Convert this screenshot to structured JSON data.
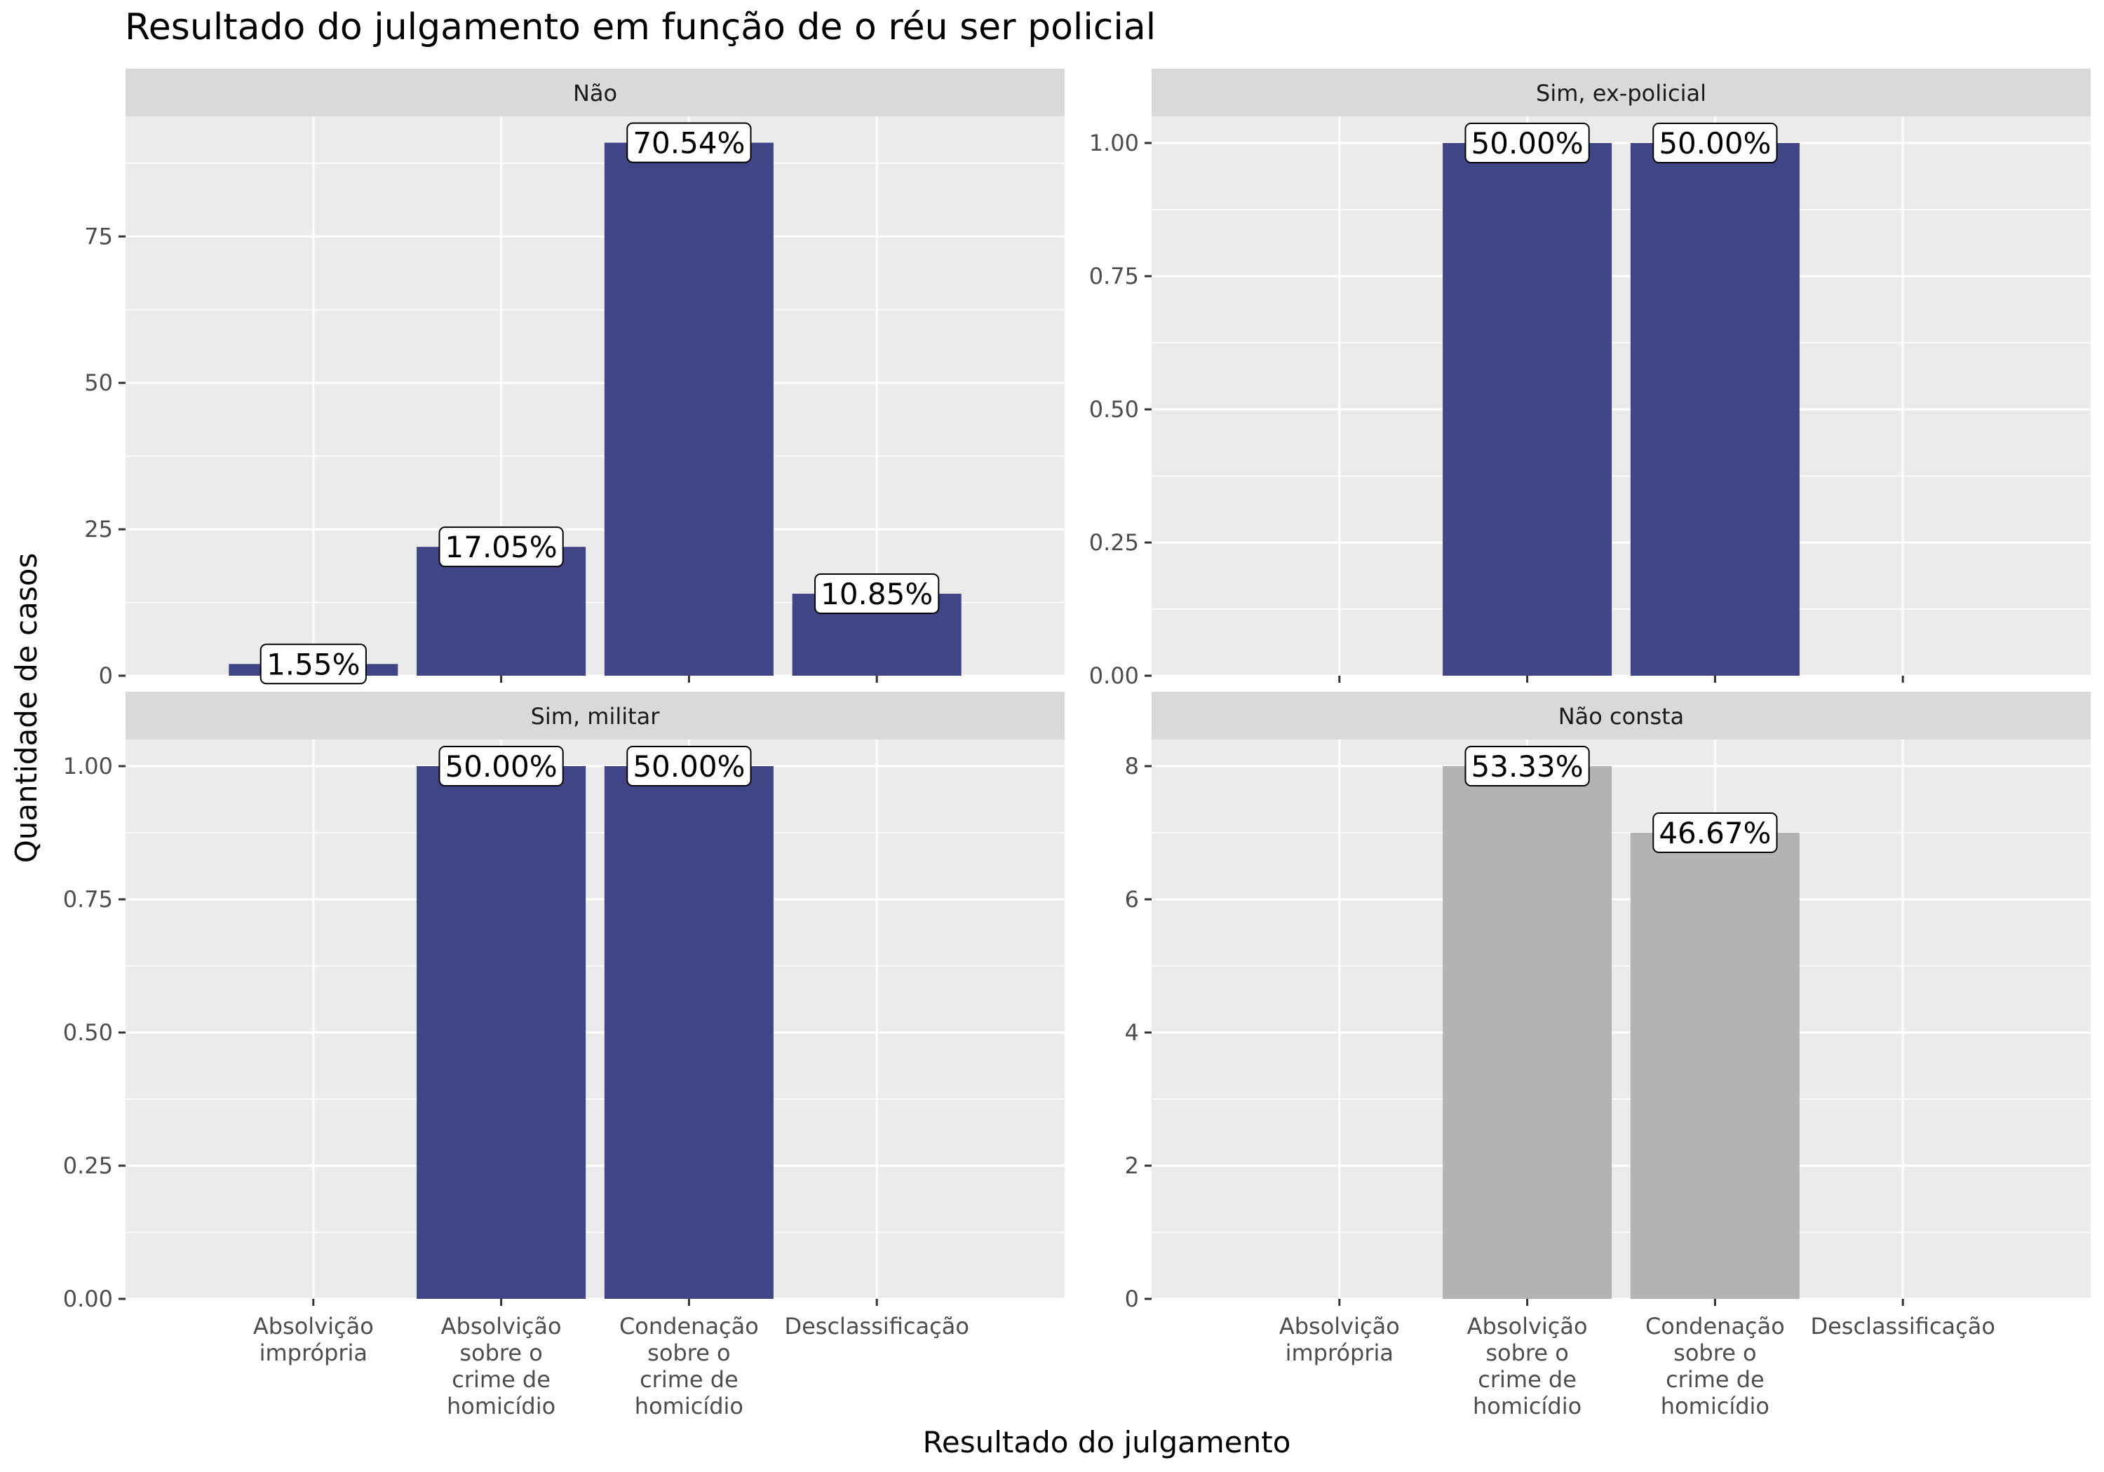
{
  "chart_data": {
    "type": "bar",
    "title": "Resultado do julgamento em função de o réu ser policial",
    "xlabel": "Resultado do julgamento",
    "ylabel": "Quantidade de casos",
    "categories": [
      [
        "Absolvição",
        "imprópria"
      ],
      [
        "Absolvição",
        "sobre o",
        "crime de",
        "homicídio"
      ],
      [
        "Condenação",
        "sobre o",
        "crime de",
        "homicídio"
      ],
      [
        "Desclassificação"
      ]
    ],
    "grid": true,
    "legend": "none",
    "colors": {
      "primary": "#404685",
      "unknown": "#b3b3b3",
      "panel_bg": "#ebebeb",
      "strip_bg": "#d9d9d9",
      "grid": "#ffffff"
    },
    "panels": [
      {
        "name": "Não",
        "ylim": [
          0,
          95.5
        ],
        "yticks": [
          0,
          25,
          50,
          75
        ],
        "ytick_labels": [
          "0",
          "25",
          "50",
          "75"
        ],
        "values": [
          2,
          22,
          91,
          14
        ],
        "labels": [
          "1.55%",
          "17.05%",
          "70.54%",
          "10.85%"
        ],
        "color": "#404685",
        "show_x_ticks": false
      },
      {
        "name": "Sim, ex-policial",
        "ylim": [
          0,
          1.05
        ],
        "yticks": [
          0,
          0.25,
          0.5,
          0.75,
          1.0
        ],
        "ytick_labels": [
          "0.00",
          "0.25",
          "0.50",
          "0.75",
          "1.00"
        ],
        "values": [
          0,
          1,
          1,
          0
        ],
        "labels": [
          "",
          "50.00%",
          "50.00%",
          ""
        ],
        "color": "#404685",
        "show_x_ticks": false
      },
      {
        "name": "Sim, militar",
        "ylim": [
          0,
          1.05
        ],
        "yticks": [
          0,
          0.25,
          0.5,
          0.75,
          1.0
        ],
        "ytick_labels": [
          "0.00",
          "0.25",
          "0.50",
          "0.75",
          "1.00"
        ],
        "values": [
          0,
          1,
          1,
          0
        ],
        "labels": [
          "",
          "50.00%",
          "50.00%",
          ""
        ],
        "color": "#404685",
        "show_x_ticks": true
      },
      {
        "name": "Não consta",
        "ylim": [
          0,
          8.4
        ],
        "yticks": [
          0,
          2,
          4,
          6,
          8
        ],
        "ytick_labels": [
          "0",
          "2",
          "4",
          "6",
          "8"
        ],
        "values": [
          0,
          8,
          7,
          0
        ],
        "labels": [
          "",
          "53.33%",
          "46.67%",
          ""
        ],
        "color": "#b3b3b3",
        "show_x_ticks": true
      }
    ]
  }
}
